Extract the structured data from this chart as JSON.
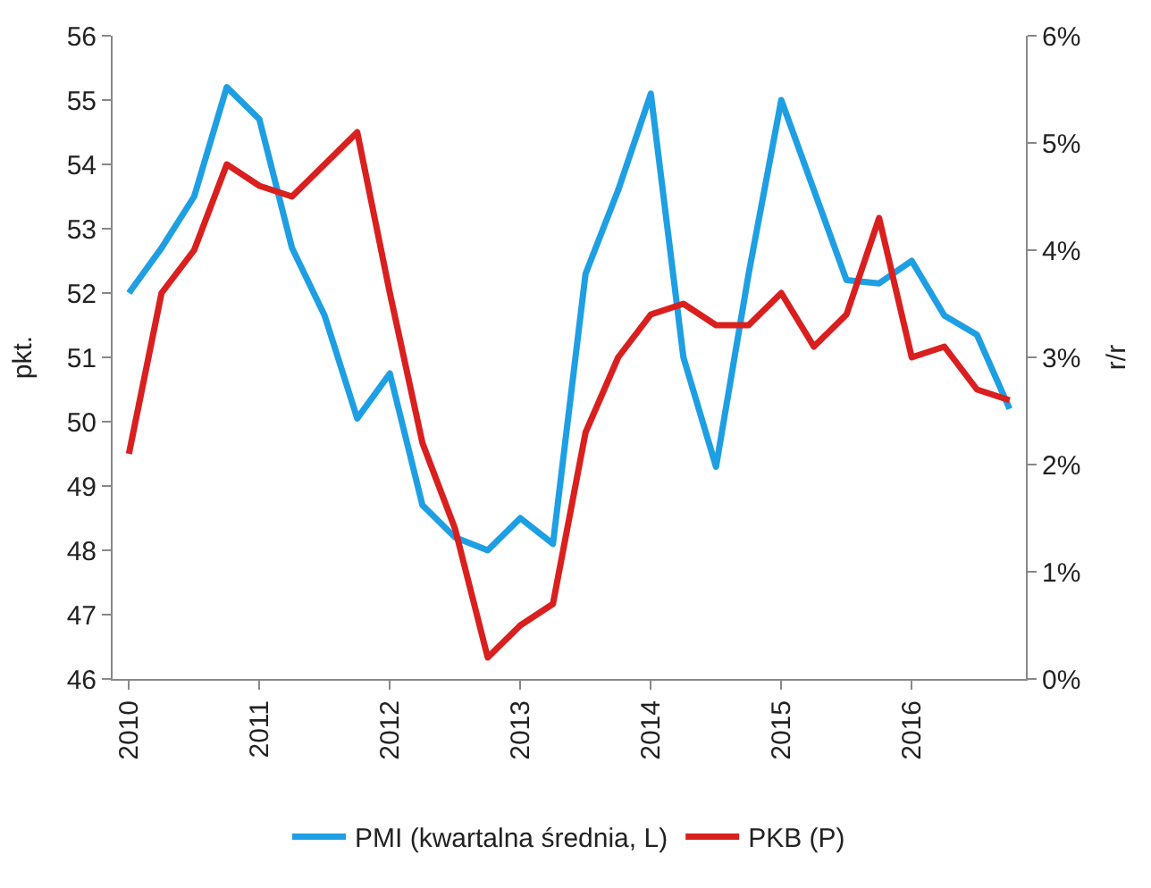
{
  "chart_data": {
    "type": "line",
    "ylabel": "pkt.",
    "y2label": "r/r",
    "categories": [
      "2010",
      null,
      null,
      null,
      "2011",
      null,
      null,
      null,
      "2012",
      null,
      null,
      null,
      "2013",
      null,
      null,
      null,
      "2014",
      null,
      null,
      null,
      "2015",
      null,
      null,
      null,
      "2016",
      null,
      null,
      null
    ],
    "series": [
      {
        "name": "PMI (kwartalna średnia, L)",
        "color": "#1e9fe3",
        "values": [
          52.0,
          52.7,
          53.5,
          55.2,
          54.7,
          52.7,
          51.65,
          50.05,
          50.75,
          48.7,
          48.2,
          48.0,
          48.5,
          48.1,
          52.3,
          53.6,
          55.1,
          51.0,
          49.3,
          52.3,
          55.0,
          53.6,
          52.2,
          52.15,
          52.5,
          51.65,
          51.35,
          50.2
        ]
      },
      {
        "name": "PKB (P)",
        "color": "#d9201f",
        "axis": "y2",
        "values": [
          2.1,
          3.6,
          4.0,
          4.8,
          4.6,
          4.5,
          4.8,
          5.1,
          3.6,
          2.2,
          1.4,
          0.2,
          0.5,
          0.7,
          2.3,
          3.0,
          3.4,
          3.5,
          3.3,
          3.3,
          3.6,
          3.1,
          3.4,
          4.3,
          3.0,
          3.1,
          2.7,
          2.6
        ]
      }
    ],
    "ylim": [
      46,
      56
    ],
    "yticks": [
      46,
      47,
      48,
      49,
      50,
      51,
      52,
      53,
      54,
      55,
      56
    ],
    "y2lim": [
      0,
      6
    ],
    "y2ticks": [
      {
        "value": 0,
        "label": "0%"
      },
      {
        "value": 1,
        "label": "1%"
      },
      {
        "value": 2,
        "label": "2%"
      },
      {
        "value": 3,
        "label": "3%"
      },
      {
        "value": 4,
        "label": "4%"
      },
      {
        "value": 5,
        "label": "5%"
      },
      {
        "value": 6,
        "label": "6%"
      }
    ],
    "legend": "bottom",
    "marker": "none",
    "line_style": "solid"
  }
}
